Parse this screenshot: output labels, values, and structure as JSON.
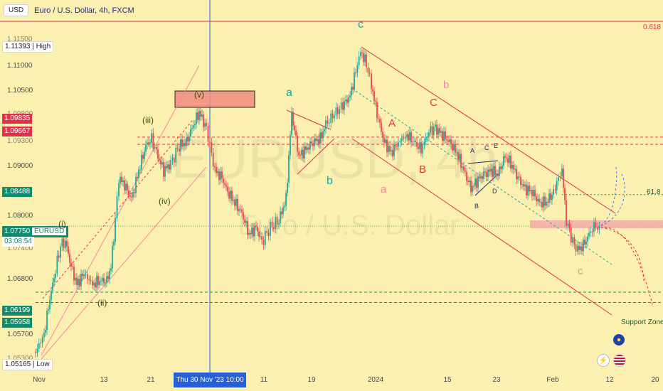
{
  "header": {
    "currency_button": "USD",
    "title": "Euro / U.S. Dollar, 4h, FXCM"
  },
  "watermark": {
    "symbol": "EURUSD, 4h",
    "name": "Euro / U.S. Dollar"
  },
  "price_labels": {
    "high_value": "1.11393",
    "high_tag": "High",
    "low_value": "1.05165",
    "low_tag": "Low",
    "red_1": "1.09835",
    "red_2": "1.09667",
    "level_1": "1.08488",
    "current_price": "1.07750",
    "current_symbol": "EURUSD",
    "countdown": "03:08:54",
    "support_1": "1.06199",
    "support_2": "1.05958",
    "partial_top": "1.11500",
    "partial_a": "1.09800",
    "partial_b": "1.09300",
    "partial_c": "1.07400",
    "partial_bottom": "1.05300"
  },
  "y_ticks": [
    "1.11000",
    "1.10500",
    "1.09000",
    "1.08000",
    "1.06800",
    "1.05700"
  ],
  "x_axis": {
    "ticks": [
      "Nov",
      "13",
      "21",
      "11",
      "19",
      "2024",
      "15",
      "23",
      "Feb",
      "12",
      "20"
    ],
    "crosshair_label": "Thu 30 Nov '23   10:00"
  },
  "annotations": {
    "fib_level": "0.618",
    "fib_618": "61.8",
    "support_zone": "Support Zone"
  },
  "wave_labels": {
    "v": "(v)",
    "iii": "(iii)",
    "iv": "(iv)",
    "ii": "(ii)",
    "i": "(i)",
    "a1": "a",
    "b1": "b",
    "c1": "c",
    "a2": "a",
    "b2": "b",
    "c2": "c",
    "A1": "A",
    "B1": "B",
    "C1": "C",
    "A2": "A",
    "B2": "B",
    "C2": "C",
    "D2": "D",
    "E2": "E"
  },
  "colors": {
    "background": "#fbf0b0",
    "up_candle": "#26a69a",
    "down_candle": "#e8474f",
    "channel": "#e03a4a",
    "support": "#1e8a55",
    "wave_teal": "#15a3a8",
    "wave_pink": "#f08aa0",
    "wave_red": "#e0314b",
    "wave_dark": "#3d4d16",
    "projection": "#3b82f6"
  },
  "chart_data": {
    "type": "candlestick",
    "title": "Euro / U.S. Dollar, 4h, FXCM",
    "close_path": [
      [
        "Nov",
        1.052
      ],
      [
        "Nov",
        1.06
      ],
      [
        "Nov",
        1.07
      ],
      [
        "Nov",
        1.0735
      ],
      [
        "13",
        1.07
      ],
      [
        "13",
        1.088
      ],
      [
        "21",
        1.0925
      ],
      [
        "21",
        1.088
      ],
      [
        "21",
        1.095
      ],
      [
        "Thu 30 Nov '23",
        1.099
      ],
      [
        "Thu 30 Nov '23",
        1.092
      ],
      [
        "11",
        1.078
      ],
      [
        "11",
        1.073
      ],
      [
        "11",
        1.08
      ],
      [
        "19",
        1.099
      ],
      [
        "19",
        1.089
      ],
      [
        "19",
        1.096
      ],
      [
        "2024",
        1.1125
      ],
      [
        "2024",
        1.098
      ],
      [
        "2024",
        1.09
      ],
      [
        "15",
        1.096
      ],
      [
        "15",
        1.09
      ],
      [
        "23",
        1.086
      ],
      [
        "23",
        1.083
      ],
      [
        "Feb",
        1.088
      ],
      [
        "Feb",
        1.074
      ],
      [
        "12",
        1.077
      ]
    ],
    "ylim": [
      1.05,
      1.116
    ],
    "key_levels": [
      1.09835,
      1.09667,
      1.08488,
      1.0775,
      1.06199,
      1.05958
    ]
  }
}
